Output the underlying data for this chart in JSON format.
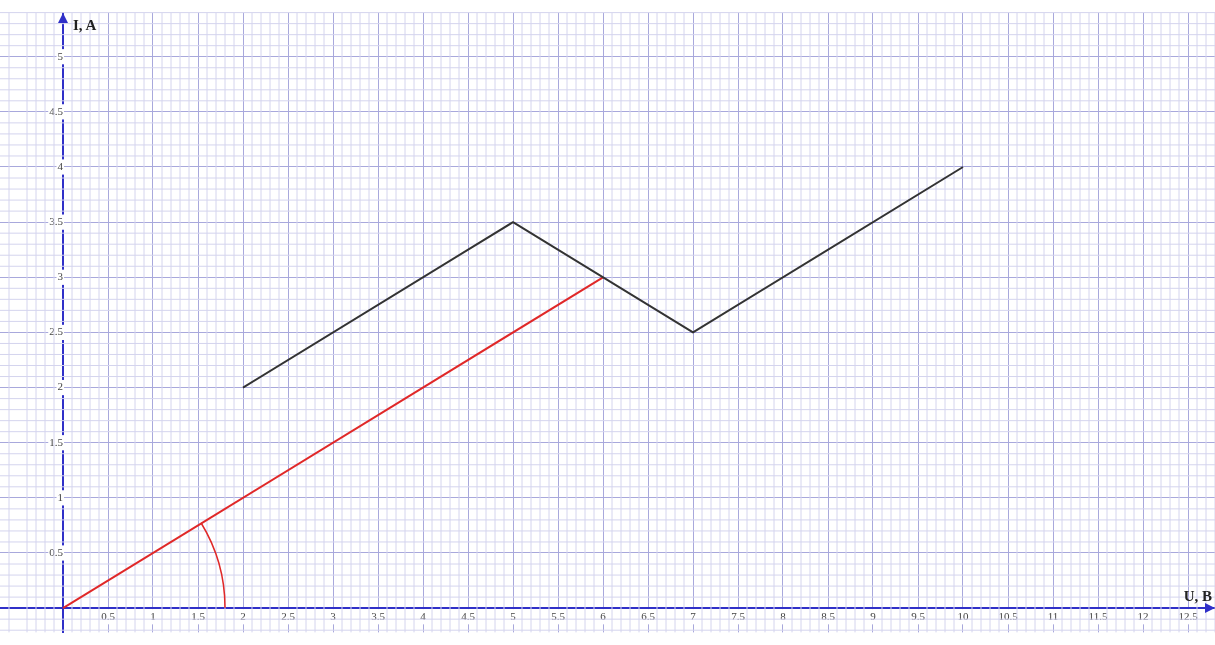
{
  "chart_data": {
    "type": "line",
    "xlabel": "U, B",
    "ylabel": "I, A",
    "xlim": [
      -0.7,
      12.8
    ],
    "ylim": [
      -0.22,
      5.4
    ],
    "xticks": [
      0.5,
      1,
      1.5,
      2,
      2.5,
      3,
      3.5,
      4,
      4.5,
      5,
      5.5,
      6,
      6.5,
      7,
      7.5,
      8,
      8.5,
      9,
      9.5,
      10,
      10.5,
      11,
      11.5,
      12,
      12.5
    ],
    "yticks": [
      0.5,
      1,
      1.5,
      2,
      2.5,
      3,
      3.5,
      4,
      4.5,
      5
    ],
    "grid": true,
    "legend": false,
    "marker": "none",
    "line_style": "solid",
    "series": [
      {
        "color": "#333333",
        "x": [
          2,
          5,
          7,
          10
        ],
        "values": [
          2,
          3.5,
          2.5,
          4
        ]
      },
      {
        "color": "#e02828",
        "x": [
          0,
          6
        ],
        "values": [
          0,
          3
        ]
      }
    ]
  }
}
